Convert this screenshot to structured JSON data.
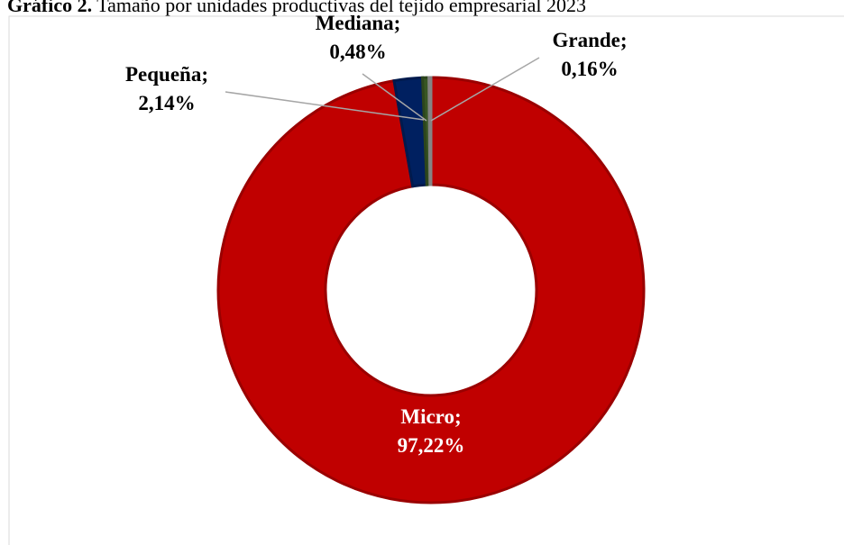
{
  "chart_data": {
    "type": "donut",
    "title": [
      "Gráfico 2.",
      " Tamaño por unidades productivas del tejido empresarial 2023"
    ],
    "categories": [
      "Micro;",
      "Pequeña;",
      "Mediana;",
      "Grande;"
    ],
    "values": [
      97.22,
      2.14,
      0.48,
      0.16
    ],
    "value_labels": [
      "97,22%",
      "2,14%",
      "0,48%",
      "0,16%"
    ],
    "colors": [
      "#c00000",
      "#002060",
      "#375623",
      "#a5a5a5"
    ]
  }
}
